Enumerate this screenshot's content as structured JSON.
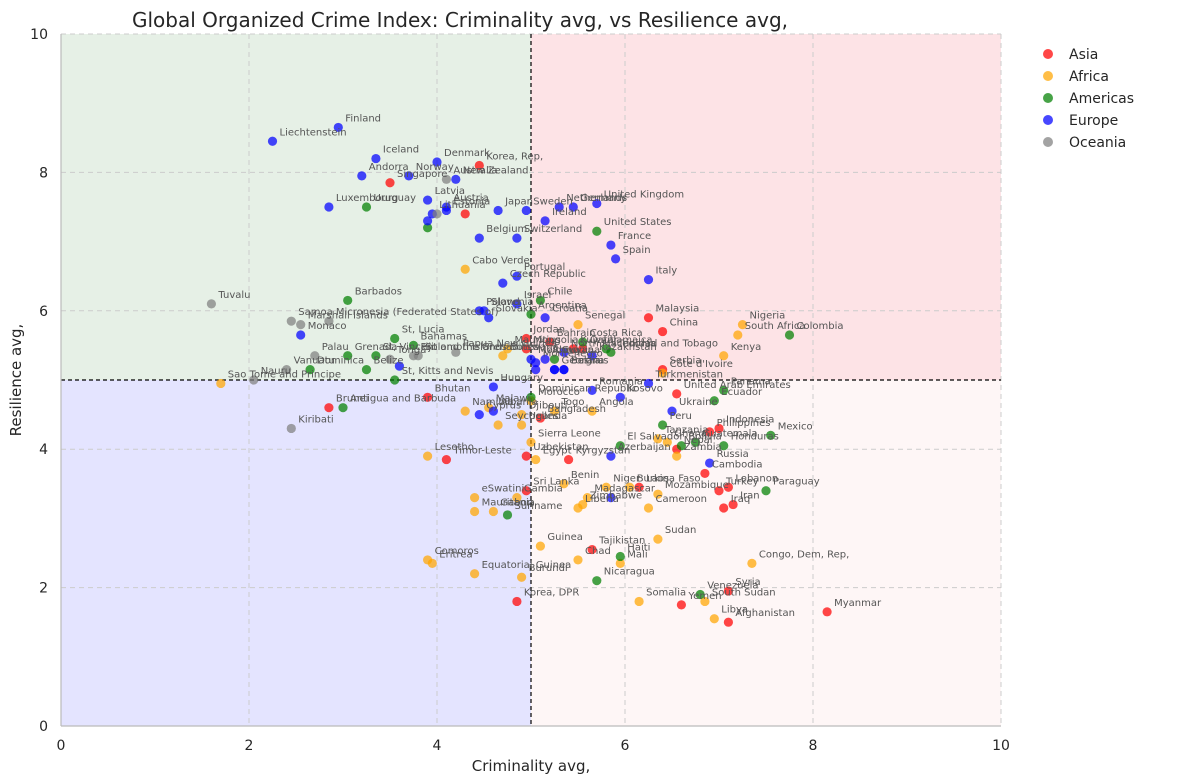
{
  "chart_data": {
    "type": "scatter",
    "title": "Global Organized Crime Index: Criminality avg, vs Resilience avg,",
    "xlabel": "Criminality avg,",
    "ylabel": "Resilience avg,",
    "xlim": [
      0,
      10
    ],
    "ylim": [
      0,
      10
    ],
    "xticks": [
      "0",
      "2",
      "4",
      "6",
      "8",
      "10"
    ],
    "yticks": [
      "0",
      "2",
      "4",
      "6",
      "8",
      "10"
    ],
    "grid": true,
    "legend_position": "top-right",
    "reference_lines": {
      "x": 5.0,
      "y": 5.0
    },
    "quadrant_colors": {
      "top_left": "#e6f0e6",
      "top_right": "#fde3e6",
      "bottom_left": "#e4e4ff",
      "bottom_right": "#fef6f6"
    },
    "series": [
      {
        "name": "Asia",
        "color": "#ff0000",
        "points": [
          {
            "label": "Korea, Rep,",
            "x": 4.45,
            "y": 8.1
          },
          {
            "label": "Singapore",
            "x": 3.5,
            "y": 7.85
          },
          {
            "label": "",
            "x": 4.3,
            "y": 7.4
          },
          {
            "label": "Malaysia",
            "x": 6.25,
            "y": 5.9
          },
          {
            "label": "China",
            "x": 6.4,
            "y": 5.7
          },
          {
            "label": "Jordan",
            "x": 4.95,
            "y": 5.6
          },
          {
            "label": "Bahrain",
            "x": 5.2,
            "y": 5.55
          },
          {
            "label": "Kuwait",
            "x": 5.45,
            "y": 5.45
          },
          {
            "label": "Qatar",
            "x": 5.55,
            "y": 5.45
          },
          {
            "label": "Mongolia",
            "x": 4.95,
            "y": 5.45
          },
          {
            "label": "Serbia",
            "x": 6.4,
            "y": 5.15
          },
          {
            "label": "United Arab Emirates",
            "x": 6.55,
            "y": 4.8
          },
          {
            "label": "Brunei",
            "x": 2.85,
            "y": 4.6
          },
          {
            "label": "Bhutan",
            "x": 3.9,
            "y": 4.75
          },
          {
            "label": "Bangladesh",
            "x": 5.1,
            "y": 4.45
          },
          {
            "label": "Philippines",
            "x": 6.9,
            "y": 4.25
          },
          {
            "label": "Indonesia",
            "x": 7.0,
            "y": 4.3
          },
          {
            "label": "Timor-Leste",
            "x": 4.1,
            "y": 3.85
          },
          {
            "label": "Uzbekistan",
            "x": 4.95,
            "y": 3.9
          },
          {
            "label": "Kyrgyzstan",
            "x": 5.4,
            "y": 3.85
          },
          {
            "label": "Nepal",
            "x": 6.55,
            "y": 4.0
          },
          {
            "label": "Lebanon",
            "x": 7.1,
            "y": 3.45
          },
          {
            "label": "Turkey",
            "x": 7.0,
            "y": 3.4
          },
          {
            "label": "Iraq",
            "x": 7.05,
            "y": 3.15
          },
          {
            "label": "Iran",
            "x": 7.15,
            "y": 3.2
          },
          {
            "label": "Laos",
            "x": 6.15,
            "y": 3.45
          },
          {
            "label": "Sri Lanka",
            "x": 4.95,
            "y": 3.4
          },
          {
            "label": "Tajikistan",
            "x": 5.65,
            "y": 2.55
          },
          {
            "label": "Korea, DPR",
            "x": 4.85,
            "y": 1.8
          },
          {
            "label": "Yemen",
            "x": 6.6,
            "y": 1.75
          },
          {
            "label": "Syria",
            "x": 7.1,
            "y": 1.95
          },
          {
            "label": "Afghanistan",
            "x": 7.1,
            "y": 1.5
          },
          {
            "label": "Myanmar",
            "x": 8.15,
            "y": 1.65
          },
          {
            "label": "Cambodia",
            "x": 6.85,
            "y": 3.65
          }
        ]
      },
      {
        "name": "Africa",
        "color": "#ffa500",
        "points": [
          {
            "label": "Cabo Verde",
            "x": 4.3,
            "y": 6.6
          },
          {
            "label": "Nigeria",
            "x": 7.25,
            "y": 5.8
          },
          {
            "label": "South Africa",
            "x": 7.2,
            "y": 5.65
          },
          {
            "label": "Botswana",
            "x": 4.7,
            "y": 5.35
          },
          {
            "label": "Mauritius",
            "x": 4.75,
            "y": 5.45
          },
          {
            "label": "Senegal",
            "x": 5.5,
            "y": 5.8
          },
          {
            "label": "Kenya",
            "x": 7.05,
            "y": 5.35
          },
          {
            "label": "Côte d'Ivoire",
            "x": 6.4,
            "y": 5.1
          },
          {
            "label": "Sao Tome and Principe",
            "x": 1.7,
            "y": 4.95
          },
          {
            "label": "Namibia",
            "x": 4.3,
            "y": 4.55
          },
          {
            "label": "Malawi",
            "x": 4.55,
            "y": 4.6
          },
          {
            "label": "Morocco",
            "x": 5.0,
            "y": 4.7
          },
          {
            "label": "Togo",
            "x": 5.25,
            "y": 4.55
          },
          {
            "label": "Angola",
            "x": 5.65,
            "y": 4.55
          },
          {
            "label": "Djibouti",
            "x": 4.9,
            "y": 4.5
          },
          {
            "label": "Uganda",
            "x": 4.9,
            "y": 4.35
          },
          {
            "label": "Seychelles",
            "x": 4.65,
            "y": 4.35
          },
          {
            "label": "Ghana",
            "x": 6.45,
            "y": 4.1
          },
          {
            "label": "Tanzania",
            "x": 6.35,
            "y": 4.15
          },
          {
            "label": "Zambia",
            "x": 6.55,
            "y": 3.9
          },
          {
            "label": "Lesotho",
            "x": 3.9,
            "y": 3.9
          },
          {
            "label": "Sierra Leone",
            "x": 5.0,
            "y": 4.1
          },
          {
            "label": "Egypt",
            "x": 5.05,
            "y": 3.85
          },
          {
            "label": "Benin",
            "x": 5.35,
            "y": 3.5
          },
          {
            "label": "eSwatini",
            "x": 4.4,
            "y": 3.3
          },
          {
            "label": "Mauritania",
            "x": 4.4,
            "y": 3.1
          },
          {
            "label": "Gabon",
            "x": 4.6,
            "y": 3.1
          },
          {
            "label": "Gambia",
            "x": 4.85,
            "y": 3.3
          },
          {
            "label": "Madagascar",
            "x": 5.6,
            "y": 3.3
          },
          {
            "label": "Liberia",
            "x": 5.5,
            "y": 3.15
          },
          {
            "label": "Zimbabwe",
            "x": 5.55,
            "y": 3.2
          },
          {
            "label": "Niger",
            "x": 5.8,
            "y": 3.45
          },
          {
            "label": "Burkina Faso",
            "x": 6.05,
            "y": 3.45
          },
          {
            "label": "Mozambique",
            "x": 6.35,
            "y": 3.35
          },
          {
            "label": "Cameroon",
            "x": 6.25,
            "y": 3.15
          },
          {
            "label": "Guinea",
            "x": 5.1,
            "y": 2.6
          },
          {
            "label": "Chad",
            "x": 5.5,
            "y": 2.4
          },
          {
            "label": "Mali",
            "x": 5.95,
            "y": 2.35
          },
          {
            "label": "Sudan",
            "x": 6.35,
            "y": 2.7
          },
          {
            "label": "Comoros",
            "x": 3.9,
            "y": 2.4
          },
          {
            "label": "Eritrea",
            "x": 3.95,
            "y": 2.35
          },
          {
            "label": "Equatorial Guinea",
            "x": 4.4,
            "y": 2.2
          },
          {
            "label": "Burundi",
            "x": 4.9,
            "y": 2.15
          },
          {
            "label": "Somalia",
            "x": 6.15,
            "y": 1.8
          },
          {
            "label": "South Sudan",
            "x": 6.85,
            "y": 1.8
          },
          {
            "label": "Libya",
            "x": 6.95,
            "y": 1.55
          },
          {
            "label": "Congo, Dem, Rep,",
            "x": 7.35,
            "y": 2.35
          }
        ]
      },
      {
        "name": "Americas",
        "color": "#008000",
        "points": [
          {
            "label": "Uruguay",
            "x": 3.25,
            "y": 7.5
          },
          {
            "label": "",
            "x": 3.9,
            "y": 7.2
          },
          {
            "label": "United States",
            "x": 5.7,
            "y": 7.15
          },
          {
            "label": "Barbados",
            "x": 3.05,
            "y": 6.15
          },
          {
            "label": "Chile",
            "x": 5.1,
            "y": 6.15
          },
          {
            "label": "Argentina",
            "x": 5.0,
            "y": 5.95
          },
          {
            "label": "Colombia",
            "x": 7.75,
            "y": 5.65
          },
          {
            "label": "Costa Rica",
            "x": 5.55,
            "y": 5.55
          },
          {
            "label": "Grenada",
            "x": 3.05,
            "y": 5.35
          },
          {
            "label": "St, Vincent and the Grenadines",
            "x": 3.35,
            "y": 5.35
          },
          {
            "label": "St, Lucia",
            "x": 3.55,
            "y": 5.6
          },
          {
            "label": "Dominica",
            "x": 2.65,
            "y": 5.15
          },
          {
            "label": "Bahamas",
            "x": 3.75,
            "y": 5.5
          },
          {
            "label": "Jamaica",
            "x": 5.8,
            "y": 5.45
          },
          {
            "label": "Trinidad and Tobago",
            "x": 5.85,
            "y": 5.4
          },
          {
            "label": "Guyana",
            "x": 5.25,
            "y": 5.3
          },
          {
            "label": "Belize",
            "x": 3.25,
            "y": 5.15
          },
          {
            "label": "St, Kitts and Nevis",
            "x": 3.55,
            "y": 5.0
          },
          {
            "label": "Antigua and Barbuda",
            "x": 3.0,
            "y": 4.6
          },
          {
            "label": "Dominican Republic",
            "x": 5.0,
            "y": 4.75
          },
          {
            "label": "Panama",
            "x": 7.05,
            "y": 4.85
          },
          {
            "label": "Ecuador",
            "x": 6.95,
            "y": 4.7
          },
          {
            "label": "Peru",
            "x": 6.4,
            "y": 4.35
          },
          {
            "label": "Mexico",
            "x": 7.55,
            "y": 4.2
          },
          {
            "label": "Honduras",
            "x": 7.05,
            "y": 4.05
          },
          {
            "label": "Guatemala",
            "x": 6.75,
            "y": 4.1
          },
          {
            "label": "Bolivia",
            "x": 6.6,
            "y": 4.05
          },
          {
            "label": "El Salvador",
            "x": 5.95,
            "y": 4.05
          },
          {
            "label": "Paraguay",
            "x": 7.5,
            "y": 3.4
          },
          {
            "label": "Suriname",
            "x": 4.75,
            "y": 3.05
          },
          {
            "label": "Haiti",
            "x": 5.95,
            "y": 2.45
          },
          {
            "label": "Nicaragua",
            "x": 5.7,
            "y": 2.1
          },
          {
            "label": "Venezuela",
            "x": 6.8,
            "y": 1.9
          }
        ]
      },
      {
        "name": "Europe",
        "color": "#0000ff",
        "points": [
          {
            "label": "Finland",
            "x": 2.95,
            "y": 8.65
          },
          {
            "label": "Liechtenstein",
            "x": 2.25,
            "y": 8.45
          },
          {
            "label": "Iceland",
            "x": 3.35,
            "y": 8.2
          },
          {
            "label": "Denmark",
            "x": 4.0,
            "y": 8.15
          },
          {
            "label": "Andorra",
            "x": 3.2,
            "y": 7.95
          },
          {
            "label": "Norway",
            "x": 3.7,
            "y": 7.95
          },
          {
            "label": "New Zealand",
            "x": 4.2,
            "y": 7.9
          },
          {
            "label": "Luxembourg",
            "x": 2.85,
            "y": 7.5
          },
          {
            "label": "Latvia",
            "x": 3.9,
            "y": 7.6
          },
          {
            "label": "Austria",
            "x": 4.1,
            "y": 7.5
          },
          {
            "label": "Estonia",
            "x": 4.1,
            "y": 7.45
          },
          {
            "label": "Lithuania",
            "x": 3.95,
            "y": 7.4
          },
          {
            "label": "Japan",
            "x": 4.65,
            "y": 7.45
          },
          {
            "label": "Sweden",
            "x": 4.95,
            "y": 7.45
          },
          {
            "label": "Netherlands",
            "x": 5.3,
            "y": 7.5
          },
          {
            "label": "Germany",
            "x": 5.45,
            "y": 7.5
          },
          {
            "label": "United Kingdom",
            "x": 5.7,
            "y": 7.55
          },
          {
            "label": "Ireland",
            "x": 5.15,
            "y": 7.3
          },
          {
            "label": "Belgium",
            "x": 4.45,
            "y": 7.05
          },
          {
            "label": "Switzerland",
            "x": 4.85,
            "y": 7.05
          },
          {
            "label": "France",
            "x": 5.85,
            "y": 6.95
          },
          {
            "label": "Spain",
            "x": 5.9,
            "y": 6.75
          },
          {
            "label": "Portugal",
            "x": 4.85,
            "y": 6.5
          },
          {
            "label": "Czech Republic",
            "x": 4.7,
            "y": 6.4
          },
          {
            "label": "Italy",
            "x": 6.25,
            "y": 6.45
          },
          {
            "label": "Slovenia",
            "x": 4.5,
            "y": 6.0
          },
          {
            "label": "Israel",
            "x": 4.85,
            "y": 6.1
          },
          {
            "label": "Croatia",
            "x": 5.15,
            "y": 5.9
          },
          {
            "label": "Poland",
            "x": 4.45,
            "y": 6.0
          },
          {
            "label": "Slovakia",
            "x": 4.55,
            "y": 5.9
          },
          {
            "label": "Monaco",
            "x": 2.55,
            "y": 5.65
          },
          {
            "label": "Moldova",
            "x": 5.0,
            "y": 5.3
          },
          {
            "label": "Georgia",
            "x": 5.25,
            "y": 5.15
          },
          {
            "label": "Montenegro",
            "x": 5.05,
            "y": 5.25
          },
          {
            "label": "Belarus",
            "x": 5.35,
            "y": 5.15
          },
          {
            "label": "Hungary",
            "x": 4.6,
            "y": 4.9
          },
          {
            "label": "Bosnia",
            "x": 5.35,
            "y": 5.15
          },
          {
            "label": "Kazakhstan",
            "x": 5.65,
            "y": 5.35
          },
          {
            "label": "Romania",
            "x": 5.65,
            "y": 4.85
          },
          {
            "label": "North Macedonia",
            "x": 5.35,
            "y": 5.4
          },
          {
            "label": "Armenia",
            "x": 5.15,
            "y": 5.3
          },
          {
            "label": "Ukraine",
            "x": 6.5,
            "y": 4.55
          },
          {
            "label": "Cyprus",
            "x": 4.45,
            "y": 4.5
          },
          {
            "label": "Kosovo",
            "x": 5.95,
            "y": 4.75
          },
          {
            "label": "Albania",
            "x": 4.6,
            "y": 4.55
          },
          {
            "label": "Azerbaijan",
            "x": 5.85,
            "y": 3.9
          },
          {
            "label": "Russia",
            "x": 6.9,
            "y": 3.8
          },
          {
            "label": "Turkmenistan",
            "x": 6.25,
            "y": 4.95
          },
          {
            "label": "",
            "x": 3.6,
            "y": 5.2
          },
          {
            "label": "",
            "x": 5.25,
            "y": 5.15
          },
          {
            "label": "",
            "x": 5.05,
            "y": 5.15
          },
          {
            "label": "",
            "x": 5.85,
            "y": 3.3
          },
          {
            "label": "",
            "x": 3.9,
            "y": 7.3
          }
        ]
      },
      {
        "name": "Oceania",
        "color": "#808080",
        "points": [
          {
            "label": "Australia",
            "x": 4.1,
            "y": 7.9
          },
          {
            "label": "",
            "x": 4.0,
            "y": 7.4
          },
          {
            "label": "Tuvalu",
            "x": 1.6,
            "y": 6.1
          },
          {
            "label": "Samoa",
            "x": 2.45,
            "y": 5.85
          },
          {
            "label": "Marshall Islands",
            "x": 2.55,
            "y": 5.8
          },
          {
            "label": "Micronesia (Federated States of)",
            "x": 2.85,
            "y": 5.85
          },
          {
            "label": "Palau",
            "x": 2.7,
            "y": 5.35
          },
          {
            "label": "Vanuatu",
            "x": 2.4,
            "y": 5.15
          },
          {
            "label": "Nauru",
            "x": 2.05,
            "y": 5.0
          },
          {
            "label": "Solomon Islands",
            "x": 3.8,
            "y": 5.35
          },
          {
            "label": "Papua New Guinea",
            "x": 4.2,
            "y": 5.4
          },
          {
            "label": "Fiji",
            "x": 3.75,
            "y": 5.35
          },
          {
            "label": "Tonga",
            "x": 3.5,
            "y": 5.3
          },
          {
            "label": "Kiribati",
            "x": 2.45,
            "y": 4.3
          }
        ]
      }
    ]
  }
}
